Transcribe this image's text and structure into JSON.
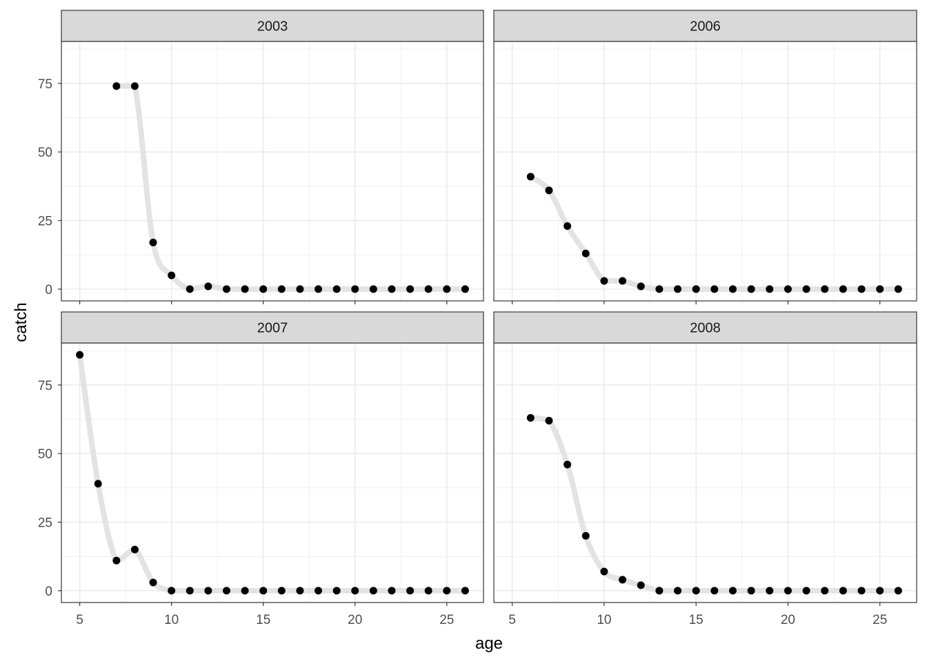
{
  "chart_data": {
    "type": "line",
    "facet_variable": "year",
    "xlabel": "age",
    "ylabel": "catch",
    "xlim": [
      4,
      27
    ],
    "ylim": [
      -4.3,
      90.3
    ],
    "x_ticks": [
      5,
      10,
      15,
      20,
      25
    ],
    "y_ticks": [
      0,
      25,
      50,
      75
    ],
    "grid": true,
    "legend": "none",
    "colors": {
      "point": "#000000",
      "smooth_line": "#e3e3e3",
      "strip_bg": "#d9d9d9",
      "grid": "#ebebeb",
      "border": "#333333"
    },
    "panels": [
      {
        "strip": "2003",
        "x": [
          7,
          8,
          9,
          10,
          11,
          12,
          13,
          14,
          15,
          16,
          17,
          18,
          19,
          20,
          21,
          22,
          23,
          24,
          25,
          26
        ],
        "y": [
          74,
          74,
          17,
          5,
          0,
          1,
          0,
          0,
          0,
          0,
          0,
          0,
          0,
          0,
          0,
          0,
          0,
          0,
          0,
          0
        ]
      },
      {
        "strip": "2006",
        "x": [
          6,
          7,
          8,
          9,
          10,
          11,
          12,
          13,
          14,
          15,
          16,
          17,
          18,
          19,
          20,
          21,
          22,
          23,
          24,
          25,
          26
        ],
        "y": [
          41,
          36,
          23,
          13,
          3,
          3,
          1,
          0,
          0,
          0,
          0,
          0,
          0,
          0,
          0,
          0,
          0,
          0,
          0,
          0,
          0
        ]
      },
      {
        "strip": "2007",
        "x": [
          5,
          6,
          7,
          8,
          9,
          10,
          11,
          12,
          13,
          14,
          15,
          16,
          17,
          18,
          19,
          20,
          21,
          22,
          23,
          24,
          25,
          26
        ],
        "y": [
          86,
          39,
          11,
          15,
          3,
          0,
          0,
          0,
          0,
          0,
          0,
          0,
          0,
          0,
          0,
          0,
          0,
          0,
          0,
          0,
          0,
          0
        ]
      },
      {
        "strip": "2008",
        "x": [
          6,
          7,
          8,
          9,
          10,
          11,
          12,
          13,
          14,
          15,
          16,
          17,
          18,
          19,
          20,
          21,
          22,
          23,
          24,
          25,
          26
        ],
        "y": [
          63,
          62,
          46,
          20,
          7,
          4,
          2,
          0,
          0,
          0,
          0,
          0,
          0,
          0,
          0,
          0,
          0,
          0,
          0,
          0,
          0
        ]
      }
    ]
  }
}
